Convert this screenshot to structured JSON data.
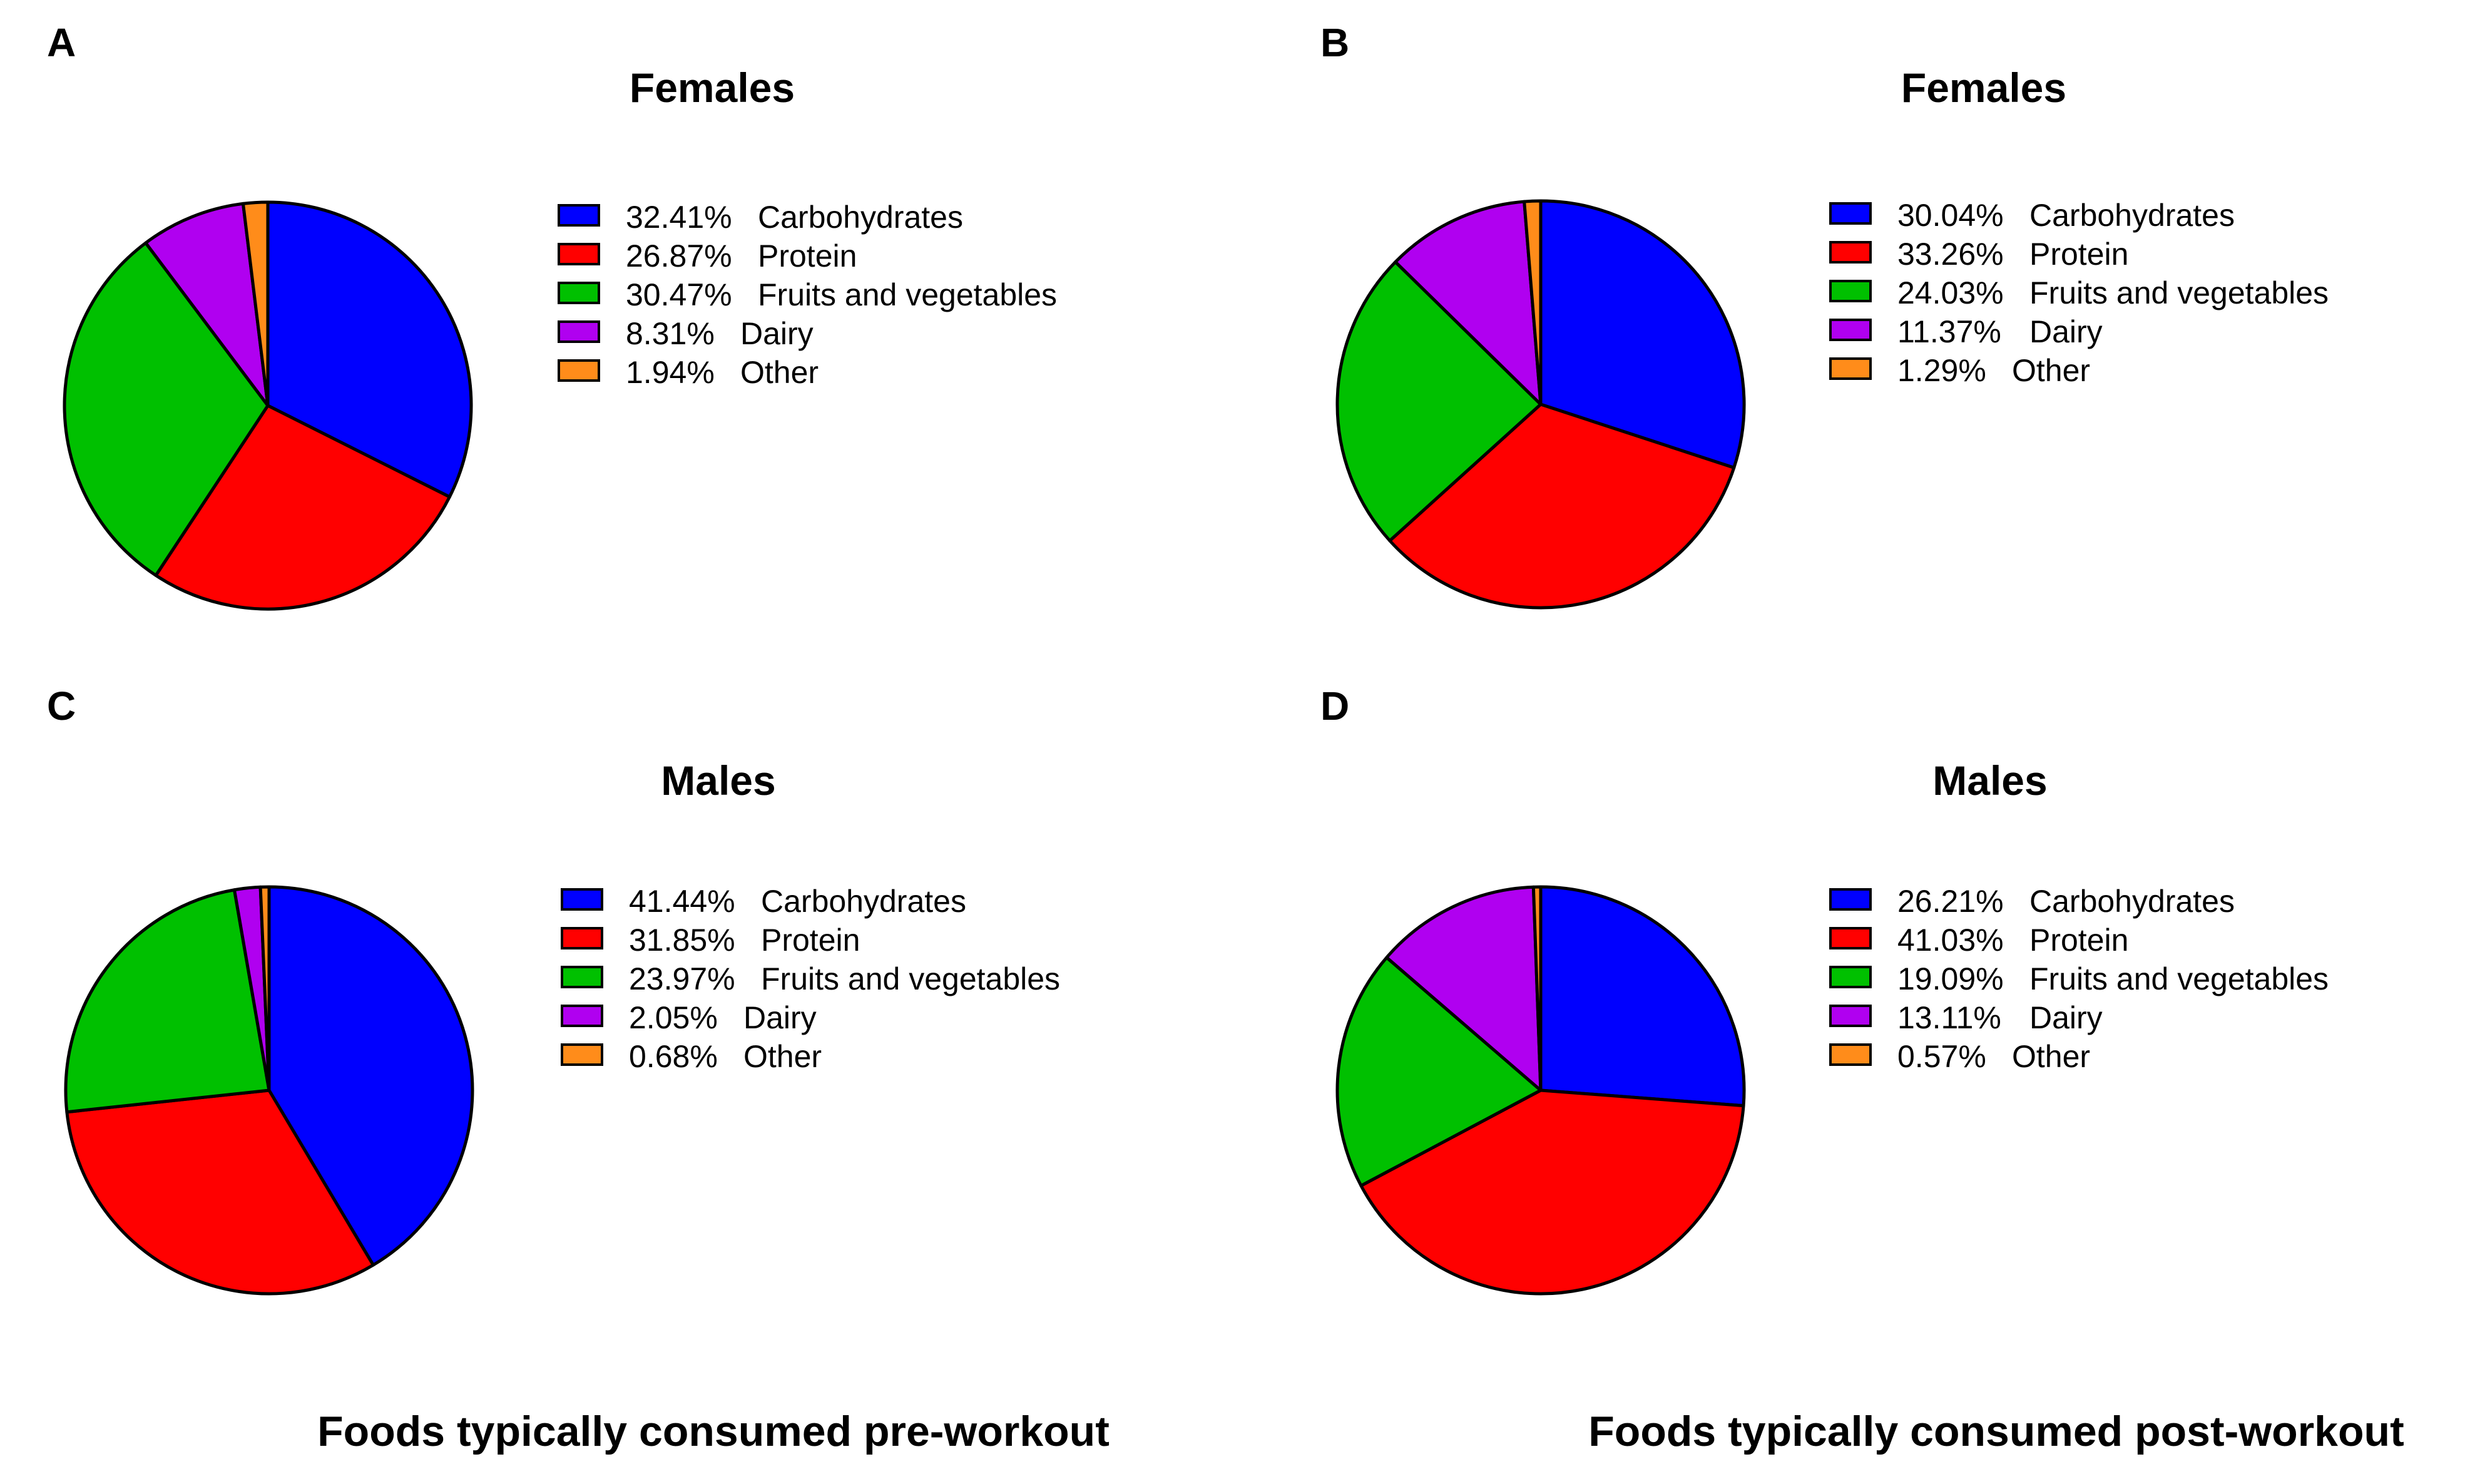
{
  "colors": {
    "Carbohydrates": "#0000ff",
    "Protein": "#ff0000",
    "Fruits and vegetables": "#00c000",
    "Dairy": "#b000f0",
    "Other": "#ff8c1a"
  },
  "captions": {
    "pre": "Foods typically consumed pre-workout",
    "post": "Foods typically consumed post-workout"
  },
  "chart_data": [
    {
      "type": "pie",
      "panel": "A",
      "title": "Females",
      "labels": [
        "Carbohydrates",
        "Protein",
        "Fruits and vegetables",
        "Dairy",
        "Other"
      ],
      "values": [
        32.41,
        26.87,
        30.47,
        8.31,
        1.94
      ],
      "value_labels": [
        "32.41%",
        "26.87%",
        "30.47%",
        "8.31%",
        "1.94%"
      ],
      "legend_position": "right"
    },
    {
      "type": "pie",
      "panel": "B",
      "title": "Females",
      "labels": [
        "Carbohydrates",
        "Protein",
        "Fruits and vegetables",
        "Dairy",
        "Other"
      ],
      "values": [
        30.04,
        33.26,
        24.03,
        11.37,
        1.29
      ],
      "value_labels": [
        "30.04%",
        "33.26%",
        "24.03%",
        "11.37%",
        "1.29%"
      ],
      "legend_position": "right"
    },
    {
      "type": "pie",
      "panel": "C",
      "title": "Males",
      "labels": [
        "Carbohydrates",
        "Protein",
        "Fruits and vegetables",
        "Dairy",
        "Other"
      ],
      "values": [
        41.44,
        31.85,
        23.97,
        2.05,
        0.68
      ],
      "value_labels": [
        "41.44%",
        "31.85%",
        "23.97%",
        "2.05%",
        "0.68%"
      ],
      "legend_position": "right"
    },
    {
      "type": "pie",
      "panel": "D",
      "title": "Males",
      "labels": [
        "Carbohydrates",
        "Protein",
        "Fruits and vegetables",
        "Dairy",
        "Other"
      ],
      "values": [
        26.21,
        41.03,
        19.09,
        13.11,
        0.57
      ],
      "value_labels": [
        "26.21%",
        "41.03%",
        "19.09%",
        "13.11%",
        "0.57%"
      ],
      "legend_position": "right"
    }
  ]
}
